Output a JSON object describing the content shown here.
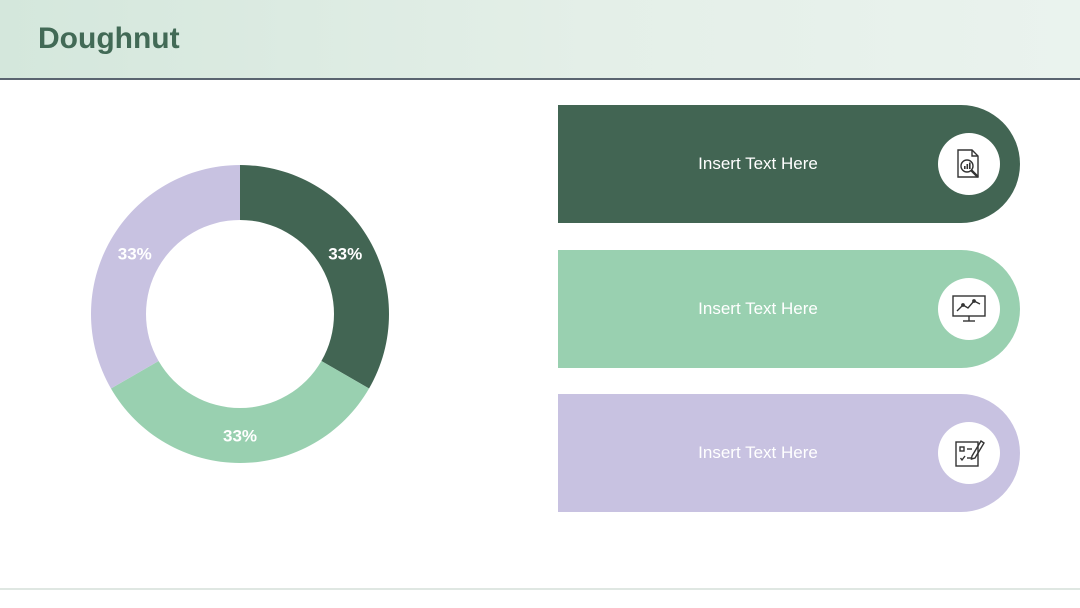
{
  "slide": {
    "title": "Doughnut"
  },
  "colors": {
    "dark_green": "#426553",
    "mint": "#99d0b0",
    "lavender": "#c8c2e1"
  },
  "chart_data": {
    "type": "pie",
    "variant": "doughnut",
    "title": "",
    "slices": [
      {
        "value": 33,
        "label": "33%",
        "color": "#426553"
      },
      {
        "value": 33,
        "label": "33%",
        "color": "#99d0b0"
      },
      {
        "value": 33,
        "label": "33%",
        "color": "#c8c2e1"
      }
    ],
    "legend": "none"
  },
  "banners": [
    {
      "text": "Insert Text Here",
      "color": "#426553",
      "icon": "report-magnifier-icon"
    },
    {
      "text": "Insert Text Here",
      "color": "#99d0b0",
      "icon": "monitor-chart-icon"
    },
    {
      "text": "Insert Text Here",
      "color": "#c8c2e1",
      "icon": "checklist-pen-icon"
    }
  ]
}
